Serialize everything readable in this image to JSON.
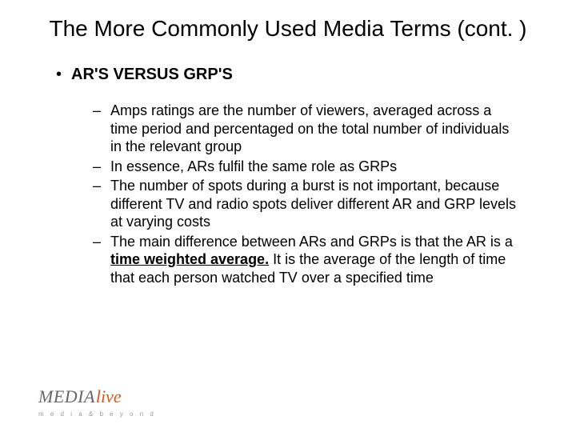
{
  "slide": {
    "title": "The More Commonly Used Media Terms (cont. )",
    "title_fontsize": 28,
    "title_color": "#000000",
    "background_color": "#ffffff"
  },
  "bullet": {
    "marker": "•",
    "text": "AR'S VERSUS GRP'S",
    "fontsize": 20,
    "fontweight": "bold",
    "color": "#000000"
  },
  "subbullets": {
    "marker": "–",
    "fontsize": 18,
    "color": "#000000",
    "items": [
      "Amps ratings are the number of viewers, averaged across a time period and percentaged on the total number of individuals in the relevant group",
      "In essence, ARs fulfil the same role as GRPs",
      "The number of spots during a burst is not important, because different TV and radio spots deliver different AR and GRP levels at varying costs"
    ],
    "item_with_emphasis_prefix": "The main difference between ARs and GRPs is that the AR is a ",
    "item_with_emphasis_bold": "time weighted average.",
    "item_with_emphasis_suffix": "  It is the average of the length of time that each person watched TV over a specified time"
  },
  "logo": {
    "part1": "MEDIA",
    "part2": "live",
    "part1_color": "#666666",
    "part2_color": "#d9531e",
    "tagline": "m e d i a   &   b e y o n d",
    "tagline_color": "#999999"
  }
}
